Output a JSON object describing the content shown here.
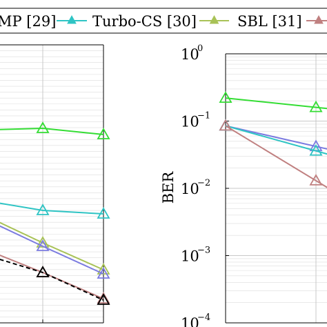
{
  "chart_data": {
    "legend": {
      "placement": "top",
      "entries": [
        {
          "label": "MP [29]",
          "color": "#6f6fd6",
          "marker": "triangle"
        },
        {
          "label": "Turbo-CS [30]",
          "color": "#2ec4c4",
          "marker": "triangle"
        },
        {
          "label": "SBL [31]",
          "color": "#a8c256",
          "marker": "triangle"
        },
        {
          "label": "[",
          "color": "#c08080",
          "marker": "triangle"
        }
      ]
    },
    "charts": [
      {
        "id": "left",
        "type": "line",
        "grid": true,
        "series": [
          {
            "color": "#33dd33",
            "points": [
              [
                0,
                188
              ],
              [
                1,
                186
              ],
              [
                2,
                195
              ]
            ]
          },
          {
            "color": "#2ec4c4",
            "points": [
              [
                0,
                293
              ],
              [
                1,
                305
              ],
              [
                2,
                310
              ]
            ]
          },
          {
            "color": "#a8c256",
            "points": [
              [
                0,
                318
              ],
              [
                1,
                352
              ],
              [
                2,
                391
              ]
            ]
          },
          {
            "color": "#7b7be0",
            "points": [
              [
                0,
                323
              ],
              [
                1,
                357
              ],
              [
                2,
                397
              ]
            ]
          },
          {
            "color": "#c08080",
            "points": [
              [
                0,
                366
              ],
              [
                1,
                395
              ],
              [
                2,
                433
              ]
            ]
          },
          {
            "color": "#000000",
            "dashed": true,
            "points": [
              [
                0,
                373
              ],
              [
                1,
                395
              ],
              [
                2,
                435
              ]
            ]
          }
        ]
      },
      {
        "id": "right",
        "type": "line",
        "yscale": "log",
        "ylabel": "BER",
        "ylim": [
          0.0001,
          1
        ],
        "yticks": [
          "10",
          "10",
          "10",
          "10",
          "10"
        ],
        "yexponents": [
          "0",
          "−1",
          "−2",
          "−3",
          "−4"
        ],
        "grid": true,
        "series": [
          {
            "color": "#33dd33",
            "values": [
              0.22,
              0.16
            ]
          },
          {
            "color": "#7b7be0",
            "values": [
              0.085,
              0.042
            ]
          },
          {
            "color": "#2ec4c4",
            "values": [
              0.085,
              0.036
            ]
          },
          {
            "color": "#c08080",
            "values": [
              0.085,
              0.013
            ]
          }
        ]
      }
    ]
  }
}
